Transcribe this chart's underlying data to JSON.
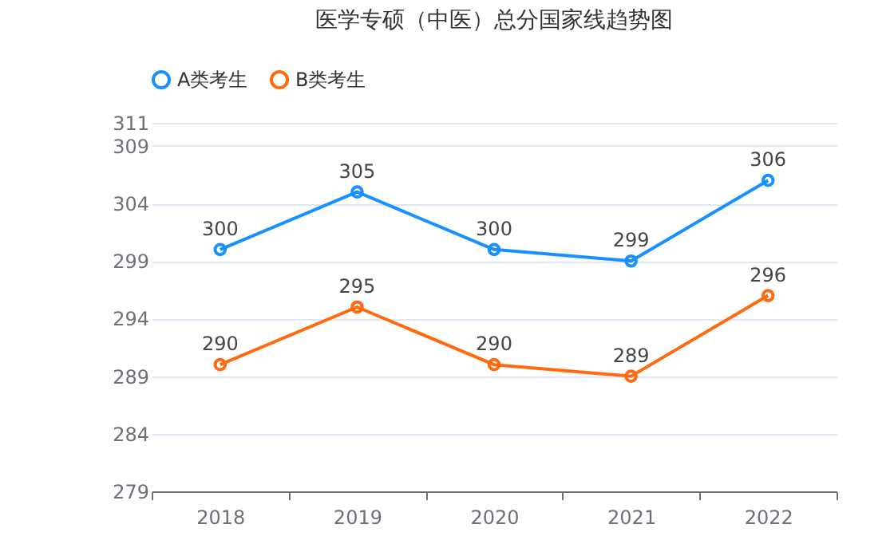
{
  "chart_data": {
    "type": "line",
    "title": "医学专硕（中医）总分国家线趋势图",
    "categories": [
      "2018",
      "2019",
      "2020",
      "2021",
      "2022"
    ],
    "series": [
      {
        "name": "A类考生",
        "color": "#1890ff",
        "values": [
          300,
          305,
          300,
          299,
          306
        ]
      },
      {
        "name": "B类考生",
        "color": "#ff6a10",
        "values": [
          290,
          295,
          290,
          289,
          296
        ]
      }
    ],
    "ylim": [
      279,
      311
    ],
    "yticks": [
      279,
      284,
      289,
      294,
      299,
      304,
      309,
      311
    ],
    "grid": "y",
    "legend": "top",
    "marker": "circle",
    "data_labels": true
  }
}
